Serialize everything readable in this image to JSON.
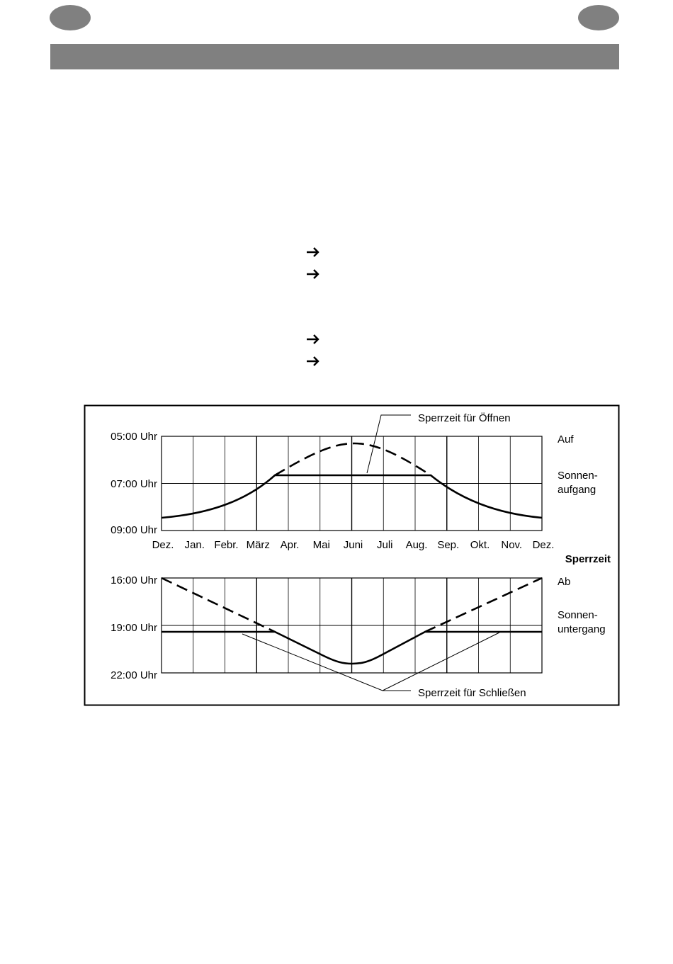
{
  "diagram": {
    "top_axis_labels": [
      "05:00 Uhr",
      "07:00 Uhr",
      "09:00 Uhr"
    ],
    "months": [
      "Dez.",
      "Jan.",
      "Febr.",
      "März",
      "Apr.",
      "Mai",
      "Juni",
      "Juli",
      "Aug.",
      "Sep.",
      "Okt.",
      "Nov.",
      "Dez."
    ],
    "bottom_axis_labels": [
      "16:00 Uhr",
      "19:00 Uhr",
      "22:00 Uhr"
    ],
    "top_right": {
      "open": "Auf",
      "sunrise": [
        "Sonnen-",
        "aufgang"
      ]
    },
    "heading": "Sperrzeit",
    "bottom_right": {
      "close": "Ab",
      "sunset": [
        "Sonnen-",
        "untergang"
      ]
    },
    "callouts": {
      "open": "Sperrzeit für Öffnen",
      "close": "Sperrzeit für Schließen"
    }
  }
}
